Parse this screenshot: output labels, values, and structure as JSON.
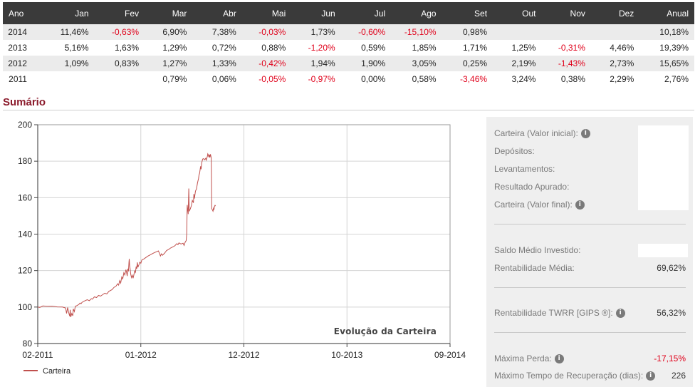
{
  "returns_table": {
    "headers": [
      "Ano",
      "Jan",
      "Fev",
      "Mar",
      "Abr",
      "Mai",
      "Jun",
      "Jul",
      "Ago",
      "Set",
      "Out",
      "Nov",
      "Dez",
      "Anual"
    ],
    "rows": [
      [
        "2014",
        "11,46%",
        "-0,63%",
        "6,90%",
        "7,38%",
        "-0,03%",
        "1,73%",
        "-0,60%",
        "-15,10%",
        "0,98%",
        "",
        "",
        "",
        "10,18%"
      ],
      [
        "2013",
        "5,16%",
        "1,63%",
        "1,29%",
        "0,72%",
        "0,88%",
        "-1,20%",
        "0,59%",
        "1,85%",
        "1,71%",
        "1,25%",
        "-0,31%",
        "4,46%",
        "19,39%"
      ],
      [
        "2012",
        "1,09%",
        "0,83%",
        "1,27%",
        "1,33%",
        "-0,42%",
        "1,94%",
        "1,90%",
        "3,05%",
        "0,25%",
        "2,19%",
        "-1,43%",
        "2,73%",
        "15,65%"
      ],
      [
        "2011",
        "",
        "",
        "0,79%",
        "0,06%",
        "-0,05%",
        "-0,97%",
        "0,00%",
        "0,58%",
        "-3,46%",
        "3,24%",
        "0,38%",
        "2,29%",
        "2,76%"
      ]
    ]
  },
  "summary": {
    "title": "Sumário"
  },
  "chart_data": {
    "type": "line",
    "title": "Evolução da Carteira",
    "xlabel": "",
    "ylabel": "",
    "ylim": [
      80,
      200
    ],
    "yticks": [
      "80",
      "100",
      "120",
      "140",
      "160",
      "180",
      "200"
    ],
    "xticks": [
      "02-2011",
      "01-2012",
      "12-2012",
      "10-2013",
      "09-2014"
    ],
    "grid": true,
    "legend": "bottom-left",
    "series": [
      {
        "name": "Carteira",
        "color": "#c0504d",
        "points": [
          [
            0,
            100
          ],
          [
            0.02,
            99.8
          ],
          [
            0.05,
            100.6
          ],
          [
            0.09,
            100.4
          ],
          [
            0.14,
            100.5
          ],
          [
            0.19,
            100.1
          ],
          [
            0.24,
            100.0
          ],
          [
            0.27,
            99.5
          ],
          [
            0.28,
            96.5
          ],
          [
            0.29,
            99.8
          ],
          [
            0.3,
            97.0
          ],
          [
            0.31,
            95.0
          ],
          [
            0.315,
            98.5
          ],
          [
            0.32,
            94.5
          ],
          [
            0.33,
            96.5
          ],
          [
            0.34,
            95.2
          ],
          [
            0.345,
            99.0
          ],
          [
            0.355,
            97.5
          ],
          [
            0.365,
            100.5
          ],
          [
            0.38,
            100.8
          ],
          [
            0.4,
            101.5
          ],
          [
            0.41,
            102.2
          ],
          [
            0.42,
            101.8
          ],
          [
            0.43,
            102.6
          ],
          [
            0.45,
            103.2
          ],
          [
            0.48,
            104.0
          ],
          [
            0.5,
            103.5
          ],
          [
            0.52,
            104.6
          ],
          [
            0.53,
            104.3
          ],
          [
            0.55,
            105.6
          ],
          [
            0.57,
            105.2
          ],
          [
            0.59,
            106.4
          ],
          [
            0.61,
            106.0
          ],
          [
            0.63,
            106.8
          ],
          [
            0.65,
            107.6
          ],
          [
            0.67,
            107.2
          ],
          [
            0.69,
            108.6
          ],
          [
            0.72,
            109.5
          ],
          [
            0.74,
            110.8
          ],
          [
            0.76,
            111.5
          ],
          [
            0.775,
            112.8
          ],
          [
            0.785,
            112.0
          ],
          [
            0.795,
            114.5
          ],
          [
            0.805,
            113.2
          ],
          [
            0.815,
            116.5
          ],
          [
            0.825,
            115.5
          ],
          [
            0.835,
            118.8
          ],
          [
            0.845,
            117.6
          ],
          [
            0.855,
            120.5
          ],
          [
            0.862,
            119.0
          ],
          [
            0.868,
            117.0
          ],
          [
            0.874,
            121.0
          ],
          [
            0.88,
            119.6
          ],
          [
            0.885,
            124.5
          ],
          [
            0.888,
            126.4
          ],
          [
            0.892,
            122.5
          ],
          [
            0.897,
            120.8
          ],
          [
            0.902,
            118.0
          ],
          [
            0.91,
            116.2
          ],
          [
            0.918,
            117.4
          ],
          [
            0.925,
            115.8
          ],
          [
            0.932,
            117.5
          ],
          [
            0.94,
            119.8
          ],
          [
            0.948,
            119.0
          ],
          [
            0.955,
            122.2
          ],
          [
            0.96,
            121.0
          ],
          [
            0.966,
            124.5
          ],
          [
            0.972,
            121.8
          ],
          [
            0.98,
            123.0
          ],
          [
            0.99,
            124.6
          ],
          [
            1.0,
            124.0
          ],
          [
            1.01,
            125.8
          ],
          [
            1.03,
            126.4
          ],
          [
            1.05,
            127.2
          ],
          [
            1.07,
            128.0
          ],
          [
            1.09,
            128.6
          ],
          [
            1.11,
            129.2
          ],
          [
            1.13,
            129.8
          ],
          [
            1.15,
            130.3
          ],
          [
            1.17,
            130.8
          ],
          [
            1.18,
            129.6
          ],
          [
            1.19,
            128.0
          ],
          [
            1.2,
            129.2
          ],
          [
            1.21,
            128.4
          ],
          [
            1.23,
            129.5
          ],
          [
            1.25,
            131.0
          ],
          [
            1.27,
            131.6
          ],
          [
            1.29,
            132.4
          ],
          [
            1.31,
            133.0
          ],
          [
            1.33,
            133.6
          ],
          [
            1.35,
            134.8
          ],
          [
            1.36,
            134.2
          ],
          [
            1.37,
            135.2
          ],
          [
            1.39,
            134.6
          ],
          [
            1.41,
            135.0
          ],
          [
            1.42,
            133.8
          ],
          [
            1.43,
            135.6
          ],
          [
            1.44,
            136.4
          ],
          [
            1.445,
            140.0
          ],
          [
            1.45,
            156.0
          ],
          [
            1.455,
            153.5
          ],
          [
            1.46,
            151.0
          ],
          [
            1.465,
            165.0
          ],
          [
            1.47,
            152.5
          ],
          [
            1.48,
            153.8
          ],
          [
            1.49,
            155.5
          ],
          [
            1.5,
            158.5
          ],
          [
            1.51,
            157.2
          ],
          [
            1.515,
            162.0
          ],
          [
            1.52,
            159.5
          ],
          [
            1.53,
            163.6
          ],
          [
            1.54,
            164.8
          ],
          [
            1.55,
            168.2
          ],
          [
            1.56,
            170.5
          ],
          [
            1.565,
            172.5
          ],
          [
            1.57,
            173.4
          ],
          [
            1.58,
            177.2
          ],
          [
            1.585,
            175.6
          ],
          [
            1.59,
            179.0
          ],
          [
            1.6,
            181.2
          ],
          [
            1.61,
            181.4
          ],
          [
            1.62,
            180.8
          ],
          [
            1.63,
            181.6
          ],
          [
            1.635,
            180.6
          ],
          [
            1.64,
            181.8
          ],
          [
            1.645,
            182.4
          ],
          [
            1.65,
            184.0
          ],
          [
            1.655,
            183.4
          ],
          [
            1.66,
            182.2
          ],
          [
            1.665,
            183.6
          ],
          [
            1.67,
            182.0
          ],
          [
            1.675,
            183.8
          ],
          [
            1.68,
            182.6
          ],
          [
            1.683,
            181.8
          ],
          [
            1.685,
            172.0
          ],
          [
            1.688,
            154.0
          ],
          [
            1.693,
            153.4
          ],
          [
            1.7,
            152.6
          ],
          [
            1.705,
            154.2
          ],
          [
            1.71,
            153.6
          ],
          [
            1.715,
            155.2
          ],
          [
            1.72,
            155.8
          ],
          [
            1.725,
            155.4
          ]
        ]
      }
    ]
  },
  "panel": {
    "rows": [
      {
        "label": "Carteira (Valor inicial):",
        "info": true,
        "value": ""
      },
      {
        "label": "Depósitos:",
        "info": false,
        "value": ""
      },
      {
        "label": "Levantamentos:",
        "info": false,
        "value": ""
      },
      {
        "label": "Resultado Apurado:",
        "info": false,
        "value": ""
      },
      {
        "label": "Carteira (Valor final):",
        "info": true,
        "value": ""
      },
      {
        "label": "Saldo Médio Investido:",
        "info": false,
        "value": ""
      },
      {
        "label": "Rentabilidade Média:",
        "info": false,
        "value": "69,62%"
      },
      {
        "label": "Rentabilidade TWRR [GIPS ®]:",
        "info": true,
        "value": "56,32%"
      },
      {
        "label": "Máxima Perda:",
        "info": true,
        "value": "-17,15%",
        "negative": true
      },
      {
        "label": "Máximo Tempo de Recuperação (dias):",
        "info": true,
        "value": "226"
      }
    ],
    "info_glyph": "i",
    "info_icon": "info-circle-icon"
  }
}
